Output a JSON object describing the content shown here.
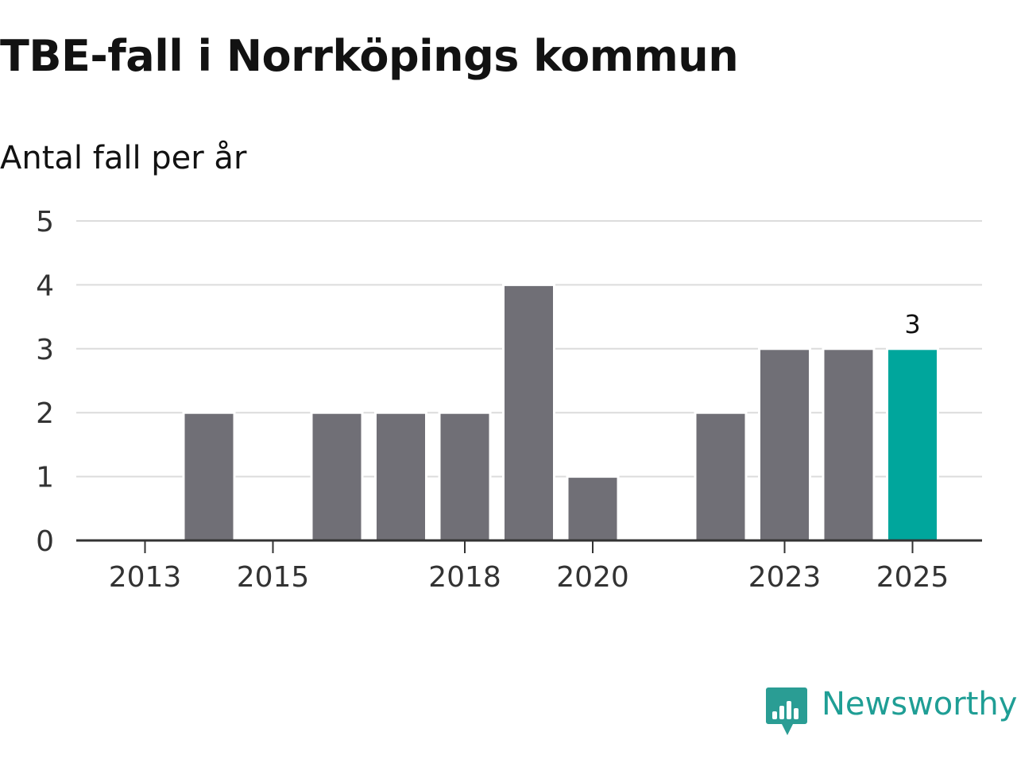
{
  "title": "TBE-fall i Norrköpings kommun",
  "subtitle": "Antal fall per år",
  "brand": {
    "name": "Newsworthy",
    "icon": "newsworthy-bar-chart-speech-bubble-icon",
    "color": "#2a9d94"
  },
  "chart_data": {
    "type": "bar",
    "title": "TBE-fall i Norrköpings kommun",
    "subtitle": "Antal fall per år",
    "xlabel": "",
    "ylabel": "",
    "categories": [
      "2013",
      "2014",
      "2015",
      "2016",
      "2017",
      "2018",
      "2019",
      "2020",
      "2021",
      "2022",
      "2023",
      "2024",
      "2025"
    ],
    "x_tick_labels": [
      "2013",
      "2015",
      "2018",
      "2020",
      "2023",
      "2025"
    ],
    "values": [
      0,
      2,
      0,
      2,
      2,
      2,
      4,
      1,
      0,
      2,
      3,
      3,
      3
    ],
    "ylim": [
      0,
      5
    ],
    "y_ticks": [
      0,
      1,
      2,
      3,
      4,
      5
    ],
    "grid": true,
    "legend": "none",
    "highlight": {
      "category": "2025",
      "value_label": "3",
      "color": "#00a69c"
    },
    "bar_color": "#706f76"
  }
}
